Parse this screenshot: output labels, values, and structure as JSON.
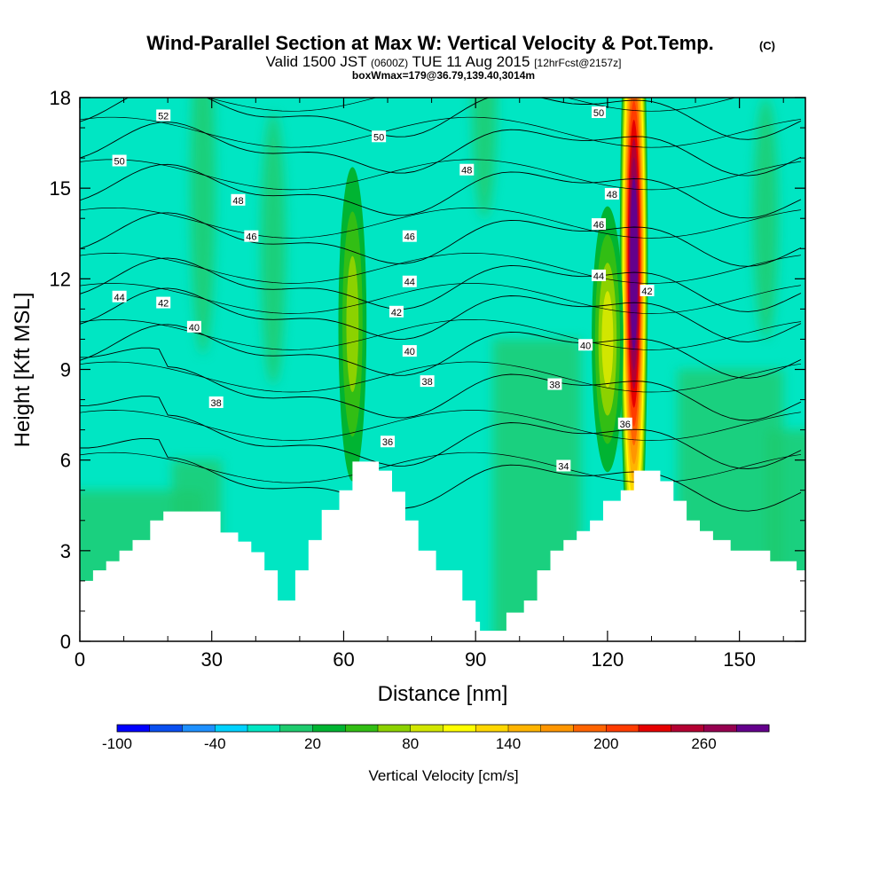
{
  "header": {
    "title_main": "Wind-Parallel Section at Max W: Vertical Velocity & Pot.Temp.",
    "title_c": "(C)",
    "subtitle_valid": "Valid 1500 JST",
    "subtitle_z": "(0600Z)",
    "subtitle_date": "TUE 11 Aug 2015",
    "subtitle_fcst": "[12hrFcst@2157z]",
    "subtitle2": "boxWmax=179@36.79,139.40,3014m"
  },
  "chart_data": {
    "type": "heatmap",
    "title": "Wind-Parallel Section at Max W: Vertical Velocity & Pot.Temp. (C)",
    "xlabel": "Distance [nm]",
    "ylabel": "Height [Kft MSL]",
    "xlim": [
      0,
      165
    ],
    "ylim": [
      0,
      18
    ],
    "x_ticks": [
      0,
      30,
      60,
      90,
      120,
      150
    ],
    "y_ticks": [
      0,
      3,
      6,
      9,
      12,
      15,
      18
    ],
    "x_tick_labels": [
      "0",
      "30",
      "60",
      "90",
      "120",
      "150"
    ],
    "y_tick_labels": [
      "0",
      "3",
      "6",
      "9",
      "12",
      "15",
      "18"
    ],
    "colorbar": {
      "label": "Vertical Velocity [cm/s]",
      "min": -100,
      "max": 300,
      "step": 20,
      "tick_values": [
        -100,
        -40,
        20,
        80,
        140,
        200,
        260
      ],
      "tick_labels": [
        "-100",
        "-40",
        "20",
        "80",
        "140",
        "200",
        "260"
      ],
      "colors": [
        "#0000ff",
        "#0a4ff0",
        "#1e90ff",
        "#00d2ff",
        "#00e6c3",
        "#1ecb6e",
        "#00b432",
        "#32be14",
        "#8cd200",
        "#d2e600",
        "#ffff00",
        "#ffd700",
        "#ffb400",
        "#ff9600",
        "#ff6400",
        "#ff3c00",
        "#e60000",
        "#b40032",
        "#960050",
        "#64008c"
      ]
    },
    "terrain": [
      [
        0,
        2.0
      ],
      [
        3,
        2.0
      ],
      [
        3,
        2.35
      ],
      [
        6,
        2.35
      ],
      [
        6,
        2.65
      ],
      [
        9,
        2.65
      ],
      [
        9,
        3.0
      ],
      [
        12,
        3.0
      ],
      [
        12,
        3.35
      ],
      [
        16,
        3.35
      ],
      [
        16,
        4.0
      ],
      [
        19,
        4.0
      ],
      [
        19,
        4.3
      ],
      [
        32,
        4.3
      ],
      [
        32,
        3.6
      ],
      [
        36,
        3.6
      ],
      [
        36,
        3.3
      ],
      [
        39,
        3.3
      ],
      [
        39,
        2.95
      ],
      [
        42,
        2.95
      ],
      [
        42,
        2.35
      ],
      [
        45,
        2.35
      ],
      [
        45,
        1.35
      ],
      [
        49,
        1.35
      ],
      [
        49,
        2.35
      ],
      [
        52,
        2.35
      ],
      [
        52,
        3.35
      ],
      [
        55,
        3.35
      ],
      [
        55,
        4.35
      ],
      [
        59,
        4.35
      ],
      [
        59,
        5.0
      ],
      [
        62,
        5.0
      ],
      [
        62,
        5.95
      ],
      [
        68,
        5.95
      ],
      [
        68,
        5.65
      ],
      [
        71,
        5.65
      ],
      [
        71,
        4.95
      ],
      [
        74,
        4.95
      ],
      [
        74,
        4.0
      ],
      [
        77,
        4.0
      ],
      [
        77,
        3.0
      ],
      [
        81,
        3.0
      ],
      [
        81,
        2.35
      ],
      [
        87,
        2.35
      ],
      [
        87,
        1.35
      ],
      [
        90,
        1.35
      ],
      [
        90,
        0.65
      ],
      [
        91,
        0.65
      ],
      [
        91,
        0.35
      ],
      [
        97,
        0.35
      ],
      [
        97,
        0.95
      ],
      [
        101,
        0.95
      ],
      [
        101,
        1.35
      ],
      [
        104,
        1.35
      ],
      [
        104,
        2.35
      ],
      [
        107,
        2.35
      ],
      [
        107,
        3.0
      ],
      [
        110,
        3.0
      ],
      [
        110,
        3.35
      ],
      [
        113,
        3.35
      ],
      [
        113,
        3.65
      ],
      [
        116,
        3.65
      ],
      [
        116,
        4.0
      ],
      [
        119,
        4.0
      ],
      [
        119,
        4.65
      ],
      [
        123,
        4.65
      ],
      [
        123,
        5.0
      ],
      [
        126,
        5.0
      ],
      [
        126,
        5.65
      ],
      [
        132,
        5.65
      ],
      [
        132,
        5.3
      ],
      [
        135,
        5.3
      ],
      [
        135,
        4.65
      ],
      [
        138,
        4.65
      ],
      [
        138,
        4.0
      ],
      [
        141,
        4.0
      ],
      [
        141,
        3.65
      ],
      [
        144,
        3.65
      ],
      [
        144,
        3.35
      ],
      [
        148,
        3.35
      ],
      [
        148,
        3.0
      ],
      [
        157,
        3.0
      ],
      [
        157,
        2.65
      ],
      [
        163,
        2.65
      ],
      [
        163,
        2.35
      ],
      [
        165,
        2.35
      ]
    ],
    "updraft_cores": [
      {
        "x": 62,
        "y": 10.5,
        "sx": 1.6,
        "sy": 2.6,
        "value": 60
      },
      {
        "x": 126,
        "y": 12.5,
        "sx": 1.6,
        "sy": 5.5,
        "value": 300
      },
      {
        "x": 120,
        "y": 10.0,
        "sx": 1.8,
        "sy": 2.2,
        "value": 80
      }
    ],
    "isentropes": [
      34,
      36,
      38,
      40,
      42,
      44,
      46,
      48,
      50,
      52
    ],
    "contour_labels": [
      {
        "text": "52",
        "x": 19,
        "y": 17.4
      },
      {
        "text": "50",
        "x": 9,
        "y": 15.9
      },
      {
        "text": "50",
        "x": 68,
        "y": 16.7
      },
      {
        "text": "50",
        "x": 118,
        "y": 17.5
      },
      {
        "text": "48",
        "x": 88,
        "y": 15.6
      },
      {
        "text": "48",
        "x": 36,
        "y": 14.6
      },
      {
        "text": "48",
        "x": 121,
        "y": 14.8
      },
      {
        "text": "46",
        "x": 39,
        "y": 13.4
      },
      {
        "text": "46",
        "x": 75,
        "y": 13.4
      },
      {
        "text": "46",
        "x": 118,
        "y": 13.8
      },
      {
        "text": "44",
        "x": 9,
        "y": 11.4
      },
      {
        "text": "44",
        "x": 75,
        "y": 11.9
      },
      {
        "text": "44",
        "x": 118,
        "y": 12.1
      },
      {
        "text": "42",
        "x": 19,
        "y": 11.2
      },
      {
        "text": "42",
        "x": 72,
        "y": 10.9
      },
      {
        "text": "42",
        "x": 129,
        "y": 11.6
      },
      {
        "text": "40",
        "x": 26,
        "y": 10.4
      },
      {
        "text": "40",
        "x": 75,
        "y": 9.6
      },
      {
        "text": "40",
        "x": 115,
        "y": 9.8
      },
      {
        "text": "38",
        "x": 31,
        "y": 7.9
      },
      {
        "text": "38",
        "x": 79,
        "y": 8.6
      },
      {
        "text": "38",
        "x": 108,
        "y": 8.5
      },
      {
        "text": "36",
        "x": 70,
        "y": 6.6
      },
      {
        "text": "36",
        "x": 124,
        "y": 7.2
      },
      {
        "text": "34",
        "x": 110,
        "y": 5.8
      }
    ]
  }
}
